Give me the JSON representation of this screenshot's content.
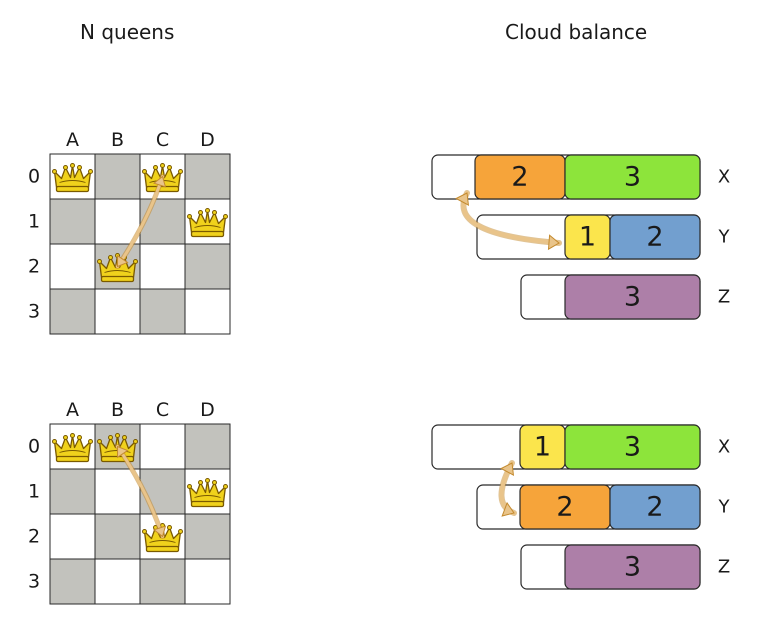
{
  "titles": {
    "left": "N queens",
    "right": "Cloud balance"
  },
  "colors": {
    "grey_cell": "#c2c2bd",
    "white_cell": "#ffffff",
    "border": "#2a2a2a",
    "queen_fill": "#f0d21c",
    "queen_stroke": "#7a5a00",
    "arrow": "#e9c48a",
    "arrow_edge": "#c48a2e",
    "orange": "#f6a43a",
    "green": "#8de43b",
    "blue": "#729fcf",
    "yellow": "#fbe54c",
    "purple": "#ad7fa8",
    "bar_bg": "#ffffff"
  },
  "icons": {
    "queen": "crown-icon"
  },
  "nqueens": [
    {
      "columns": [
        "A",
        "B",
        "C",
        "D"
      ],
      "rows": [
        "0",
        "1",
        "2",
        "3"
      ],
      "queens": [
        {
          "col": 0,
          "row": 0
        },
        {
          "col": 2,
          "row": 0
        },
        {
          "col": 3,
          "row": 1
        },
        {
          "col": 1,
          "row": 2
        }
      ],
      "move": {
        "from": {
          "col": 1,
          "row": 2
        },
        "to": {
          "col": 2,
          "row": 0
        }
      }
    },
    {
      "columns": [
        "A",
        "B",
        "C",
        "D"
      ],
      "rows": [
        "0",
        "1",
        "2",
        "3"
      ],
      "queens": [
        {
          "col": 0,
          "row": 0
        },
        {
          "col": 1,
          "row": 0
        },
        {
          "col": 3,
          "row": 1
        },
        {
          "col": 2,
          "row": 2
        }
      ],
      "move": {
        "from": {
          "col": 1,
          "row": 0
        },
        "to": {
          "col": 2,
          "row": 2
        }
      }
    }
  ],
  "cloud": [
    {
      "computers": [
        {
          "name": "X",
          "processes": [
            {
              "size": 2,
              "color": "orange"
            },
            {
              "size": 3,
              "color": "green"
            }
          ]
        },
        {
          "name": "Y",
          "processes": [
            {
              "size": 1,
              "color": "yellow"
            },
            {
              "size": 2,
              "color": "blue"
            }
          ]
        },
        {
          "name": "Z",
          "processes": [
            {
              "size": 3,
              "color": "purple"
            }
          ]
        }
      ],
      "swap": {
        "a": {
          "computer": 0,
          "process": 0
        },
        "b": {
          "computer": 1,
          "process": 0
        }
      }
    },
    {
      "computers": [
        {
          "name": "X",
          "processes": [
            {
              "size": 1,
              "color": "yellow"
            },
            {
              "size": 3,
              "color": "green"
            }
          ]
        },
        {
          "name": "Y",
          "processes": [
            {
              "size": 2,
              "color": "orange"
            },
            {
              "size": 2,
              "color": "blue"
            }
          ]
        },
        {
          "name": "Z",
          "processes": [
            {
              "size": 3,
              "color": "purple"
            }
          ]
        }
      ],
      "swap": {
        "a": {
          "computer": 0,
          "process": 0
        },
        "b": {
          "computer": 1,
          "process": 0
        }
      }
    }
  ]
}
